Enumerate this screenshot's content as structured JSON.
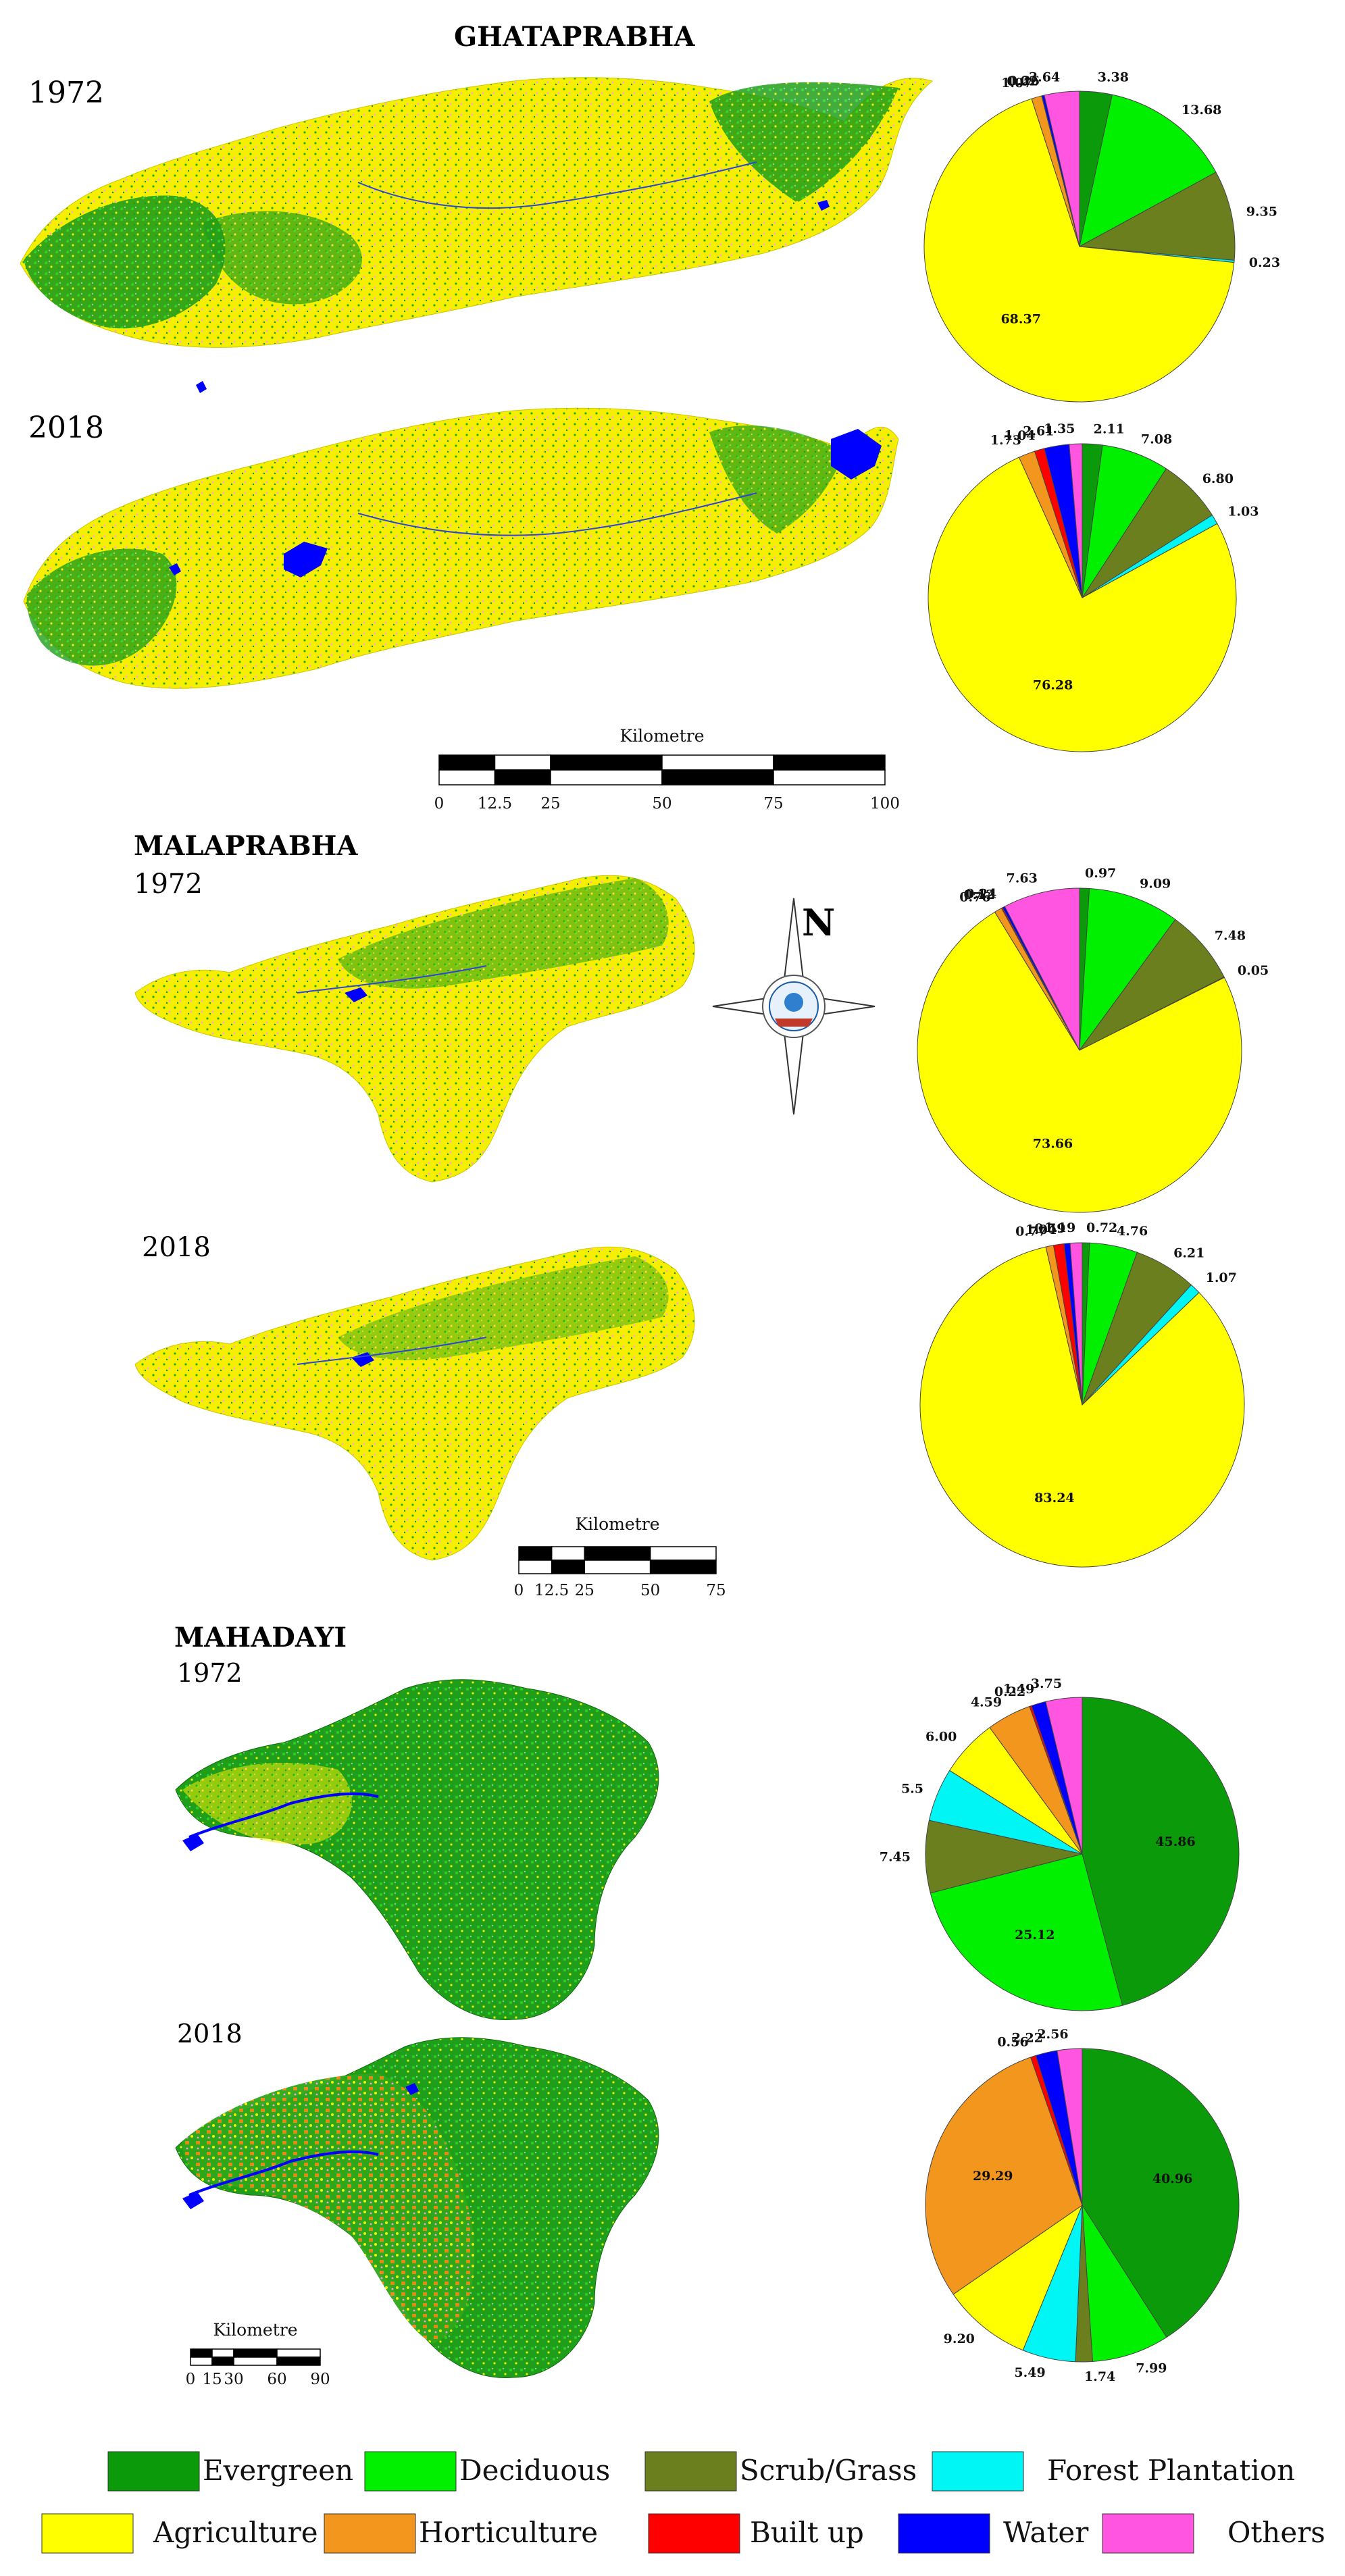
{
  "basins": [
    {
      "id": "ghataprabha",
      "title": "GHATAPRABHA",
      "panels": [
        {
          "year": "1972",
          "values": {
            "evergreen": 3.38,
            "deciduous": 13.68,
            "scrub": 9.35,
            "plantation": 0.23,
            "agriculture": 68.37,
            "horticulture": 1.07,
            "builtup": 0.02,
            "water": 0.26,
            "others": 3.64
          }
        },
        {
          "year": "2018",
          "values": {
            "evergreen": 2.11,
            "deciduous": 7.08,
            "scrub": 6.8,
            "plantation": 1.03,
            "agriculture": 76.28,
            "horticulture": 1.73,
            "builtup": 1.04,
            "water": 2.61,
            "others": 1.35
          }
        }
      ],
      "scale": {
        "label": "Kilometre",
        "ticks": [
          "0",
          "12.5",
          "25",
          "50",
          "75",
          "100"
        ]
      }
    },
    {
      "id": "malaprabha",
      "title": "MALAPRABHA",
      "panels": [
        {
          "year": "1972",
          "values": {
            "evergreen": 0.97,
            "deciduous": 9.09,
            "scrub": 7.48,
            "plantation": 0.05,
            "agriculture": 73.66,
            "horticulture": 0.76,
            "builtup": 0.12,
            "water": 0.24,
            "others": 7.63
          }
        },
        {
          "year": "2018",
          "values": {
            "evergreen": 0.72,
            "deciduous": 4.76,
            "scrub": 6.21,
            "plantation": 1.07,
            "agriculture": 83.24,
            "horticulture": 0.77,
            "builtup": 1.04,
            "water": 0.59,
            "others": 1.19
          }
        }
      ],
      "scale": {
        "label": "Kilometre",
        "ticks": [
          "0",
          "12.5",
          "25",
          "50",
          "75"
        ]
      }
    },
    {
      "id": "mahadayi",
      "title": "MAHADAYI",
      "panels": [
        {
          "year": "1972",
          "values": {
            "evergreen": 45.86,
            "deciduous": 25.12,
            "scrub": 7.45,
            "plantation": 5.5,
            "agriculture": 6.0,
            "horticulture": 4.59,
            "builtup": 0.22,
            "water": 1.49,
            "others": 3.75
          }
        },
        {
          "year": "2018",
          "values": {
            "evergreen": 40.96,
            "deciduous": 7.99,
            "scrub": 1.74,
            "plantation": 5.49,
            "agriculture": 9.2,
            "horticulture": 29.29,
            "builtup": 0.56,
            "water": 2.22,
            "others": 2.56
          }
        }
      ],
      "scale": {
        "label": "Kilometre",
        "ticks": [
          "0",
          "15",
          "30",
          "60",
          "90"
        ]
      }
    }
  ],
  "pie_labels": [
    [
      "3.38",
      "13.68",
      "9.35",
      "0.23",
      "68.37",
      "1.07",
      "0.02",
      "0.26",
      "3.64"
    ],
    [
      "2.11",
      "7.08",
      "6.80",
      "1.03",
      "76.28",
      "1.73",
      "1.04",
      "2.61",
      "1.35"
    ],
    [
      "0.97",
      "9.09",
      "7.48",
      "0.05",
      "73.66",
      "0.76",
      "0.12",
      "0.24",
      "7.63"
    ],
    [
      "0.72",
      "4.76",
      "6.21",
      "1.07",
      "83.24",
      "0.77",
      "1.04",
      "0.59",
      "1.19"
    ],
    [
      "45.86",
      "25.12",
      "7.45",
      "5.5",
      "6.00",
      "4.59",
      "0.22",
      "1.49",
      "3.75"
    ],
    [
      "40.96",
      "7.99",
      "1.74",
      "5.49",
      "9.20",
      "29.29",
      "0.56",
      "2.22",
      "2.56"
    ]
  ],
  "categories": [
    {
      "key": "evergreen",
      "label": "Evergreen",
      "color": "#0a9a0a"
    },
    {
      "key": "deciduous",
      "label": "Deciduous",
      "color": "#00f000"
    },
    {
      "key": "scrub",
      "label": "Scrub/Grass",
      "color": "#6b7f1e"
    },
    {
      "key": "plantation",
      "label": "Forest Plantation",
      "color": "#00f5f5"
    },
    {
      "key": "agriculture",
      "label": "Agriculture",
      "color": "#ffff00"
    },
    {
      "key": "horticulture",
      "label": "Horticulture",
      "color": "#f2961e"
    },
    {
      "key": "builtup",
      "label": "Built up",
      "color": "#ff0000"
    },
    {
      "key": "water",
      "label": "Water",
      "color": "#0000ff"
    },
    {
      "key": "others",
      "label": "Others",
      "color": "#ff55e0"
    }
  ],
  "north_arrow": {
    "label": "N"
  }
}
